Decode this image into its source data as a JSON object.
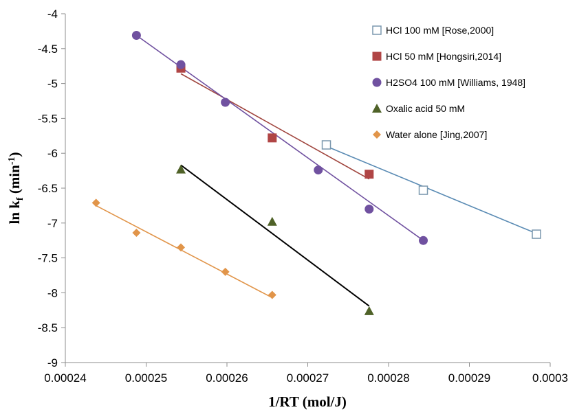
{
  "chart_data": {
    "type": "scatter",
    "title": "",
    "xlabel": "1/RT (mol/J)",
    "ylabel": {
      "main": "ln k",
      "sub": "f",
      "unit_pre": " (min",
      "unit_sup": "-1",
      "unit_post": ")"
    },
    "xlim": [
      0.00024,
      0.0003
    ],
    "ylim": [
      -9,
      -4
    ],
    "x_ticks": [
      "0.00024",
      "0.00025",
      "0.00026",
      "0.00027",
      "0.00028",
      "0.00029",
      "0.0003"
    ],
    "y_ticks": [
      "-4",
      "-4.5",
      "-5",
      "-5.5",
      "-6",
      "-6.5",
      "-7",
      "-7.5",
      "-8",
      "-8.5",
      "-9"
    ],
    "grid": false,
    "legend_position": "top-right",
    "series": [
      {
        "name": "HCl 100 mM [Rose,2000]",
        "marker": "square-open",
        "color": "#5a8bb4",
        "points": [
          [
            0.0002723,
            -5.88
          ],
          [
            0.0002843,
            -6.53
          ],
          [
            0.0002983,
            -7.16
          ]
        ],
        "trend": [
          [
            0.0002723,
            -5.9
          ],
          [
            0.0002983,
            -7.15
          ]
        ]
      },
      {
        "name": "HCl 50 mM [Hongsiri,2014]",
        "marker": "square",
        "color": "#b04545",
        "points": [
          [
            0.0002543,
            -4.78
          ],
          [
            0.0002656,
            -5.78
          ],
          [
            0.0002776,
            -6.3
          ]
        ],
        "trend": [
          [
            0.0002543,
            -4.86
          ],
          [
            0.0002776,
            -6.37
          ]
        ]
      },
      {
        "name": "H2SO4 100 mM [Williams, 1948]",
        "marker": "circle",
        "color": "#7051a0",
        "points": [
          [
            0.0002488,
            -4.31
          ],
          [
            0.0002543,
            -4.73
          ],
          [
            0.0002598,
            -5.27
          ],
          [
            0.0002713,
            -6.24
          ],
          [
            0.0002776,
            -6.8
          ],
          [
            0.0002843,
            -7.25
          ]
        ],
        "trend": [
          [
            0.0002488,
            -4.31
          ],
          [
            0.0002843,
            -7.25
          ]
        ]
      },
      {
        "name": "Oxalic acid 50 mM",
        "marker": "triangle",
        "color": "#4f6228",
        "points": [
          [
            0.0002543,
            -6.23
          ],
          [
            0.0002656,
            -6.98
          ],
          [
            0.0002776,
            -8.26
          ]
        ],
        "trend": [
          [
            0.0002543,
            -6.17
          ],
          [
            0.0002776,
            -8.19
          ]
        ]
      },
      {
        "name": "Water alone [Jing,2007]",
        "marker": "diamond",
        "color": "#e1954a",
        "points": [
          [
            0.0002438,
            -6.71
          ],
          [
            0.0002488,
            -7.14
          ],
          [
            0.0002543,
            -7.35
          ],
          [
            0.0002598,
            -7.7
          ],
          [
            0.0002656,
            -8.03
          ]
        ],
        "trend": [
          [
            0.0002438,
            -6.75
          ],
          [
            0.0002656,
            -8.07
          ]
        ]
      }
    ]
  }
}
